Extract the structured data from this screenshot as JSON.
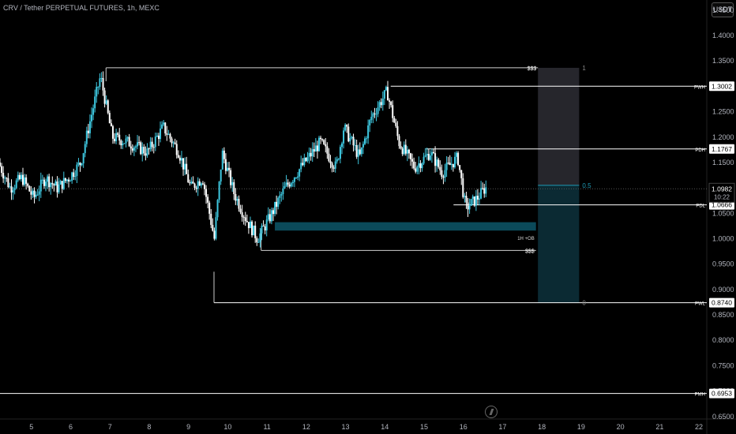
{
  "header": {
    "symbol_title": "CRV / Tether PERPETUAL FUTURES, 1h, MEXC",
    "currency_button": "USDT"
  },
  "colors": {
    "background": "#000000",
    "candle_up": "#3ec8e0",
    "candle_down": "#ffffff",
    "zone": "#0b4a5a",
    "level_line": "#ffffff",
    "accent": "#1e9bb5"
  },
  "chart_data": {
    "type": "candlestick",
    "title": "CRV / Tether PERPETUAL FUTURES, 1h, MEXC",
    "x_ticks": [
      {
        "label": "5",
        "day": 5
      },
      {
        "label": "6",
        "day": 6
      },
      {
        "label": "7",
        "day": 7
      },
      {
        "label": "8",
        "day": 8
      },
      {
        "label": "9",
        "day": 9
      },
      {
        "label": "10",
        "day": 10
      },
      {
        "label": "11",
        "day": 11
      },
      {
        "label": "12",
        "day": 12
      },
      {
        "label": "13",
        "day": 13
      },
      {
        "label": "14",
        "day": 14
      },
      {
        "label": "15",
        "day": 15
      },
      {
        "label": "16",
        "day": 16
      },
      {
        "label": "17",
        "day": 17
      },
      {
        "label": "18",
        "day": 18
      },
      {
        "label": "19",
        "day": 19
      },
      {
        "label": "20",
        "day": 20
      },
      {
        "label": "21",
        "day": 21
      },
      {
        "label": "22",
        "day": 22
      }
    ],
    "y_ticks": [
      "1.4500",
      "1.4000",
      "1.3500",
      "1.3000",
      "1.2500",
      "1.2000",
      "1.1500",
      "1.1000",
      "1.0500",
      "1.0000",
      "0.9500",
      "0.9000",
      "0.8500",
      "0.8000",
      "0.7500",
      "0.7000",
      "0.6500"
    ],
    "y_tick_values": [
      1.45,
      1.4,
      1.35,
      1.3,
      1.25,
      1.2,
      1.15,
      1.1,
      1.05,
      1.0,
      0.95,
      0.9,
      0.85,
      0.8,
      0.75,
      0.7,
      0.65
    ],
    "ylim": [
      0.645,
      1.47
    ],
    "xlim": [
      4.2,
      22.2
    ],
    "price_path": [
      [
        4.2,
        1.15
      ],
      [
        4.5,
        1.1
      ],
      [
        4.8,
        1.12
      ],
      [
        5.1,
        1.08
      ],
      [
        5.4,
        1.12
      ],
      [
        5.7,
        1.1
      ],
      [
        6.0,
        1.12
      ],
      [
        6.3,
        1.15
      ],
      [
        6.5,
        1.22
      ],
      [
        6.8,
        1.32
      ],
      [
        7.1,
        1.2
      ],
      [
        7.5,
        1.19
      ],
      [
        8.0,
        1.17
      ],
      [
        8.4,
        1.22
      ],
      [
        8.8,
        1.17
      ],
      [
        9.1,
        1.1
      ],
      [
        9.4,
        1.12
      ],
      [
        9.7,
        1.0
      ],
      [
        9.9,
        1.17
      ],
      [
        10.2,
        1.09
      ],
      [
        10.5,
        1.04
      ],
      [
        10.8,
        1.0
      ],
      [
        11.1,
        1.04
      ],
      [
        11.5,
        1.1
      ],
      [
        11.9,
        1.14
      ],
      [
        12.4,
        1.19
      ],
      [
        12.8,
        1.14
      ],
      [
        13.0,
        1.22
      ],
      [
        13.4,
        1.16
      ],
      [
        13.7,
        1.24
      ],
      [
        14.1,
        1.29
      ],
      [
        14.4,
        1.19
      ],
      [
        14.8,
        1.14
      ],
      [
        15.2,
        1.17
      ],
      [
        15.5,
        1.13
      ],
      [
        15.9,
        1.16
      ],
      [
        16.1,
        1.06
      ],
      [
        16.4,
        1.08
      ],
      [
        16.6,
        1.1
      ]
    ],
    "current_price": {
      "value": "1.0982",
      "countdown": "10:22",
      "y": 1.0982
    },
    "levels": [
      {
        "id": "pwh",
        "label": "PWH",
        "value_label": "1.3002",
        "y": 1.3002,
        "x_start": 14.15
      },
      {
        "id": "pdh",
        "label": "PDH",
        "value_label": "1.1767",
        "y": 1.1767,
        "x_start": 15.05
      },
      {
        "id": "pdl",
        "label": "PDL",
        "value_label": "1.0666",
        "y": 1.0666,
        "x_start": 15.75
      },
      {
        "id": "pwl",
        "label": "PWL",
        "value_label": "0.8740",
        "y": 0.874,
        "x_start": 9.65
      },
      {
        "id": "pmh",
        "label": "PMH",
        "value_label": "0.6953",
        "y": 0.6953,
        "x_start": 4.2
      }
    ],
    "liquidity": [
      {
        "label": "$$$",
        "y": 1.3365,
        "x_start": 6.9,
        "x_end": 17.9
      },
      {
        "label": "$$$",
        "y": 0.977,
        "x_start": 10.85,
        "x_end": 17.85
      }
    ],
    "order_block": {
      "label": "1H +OB",
      "y_top": 1.0325,
      "y_bottom": 1.016,
      "x_start": 11.2,
      "x_end": 17.85
    },
    "fib": {
      "x_start": 17.9,
      "x_end": 18.95,
      "levels": [
        {
          "label": "1",
          "y": 1.3365
        },
        {
          "label": "0.5",
          "y": 1.105
        },
        {
          "label": "0",
          "y": 0.874
        }
      ]
    }
  }
}
